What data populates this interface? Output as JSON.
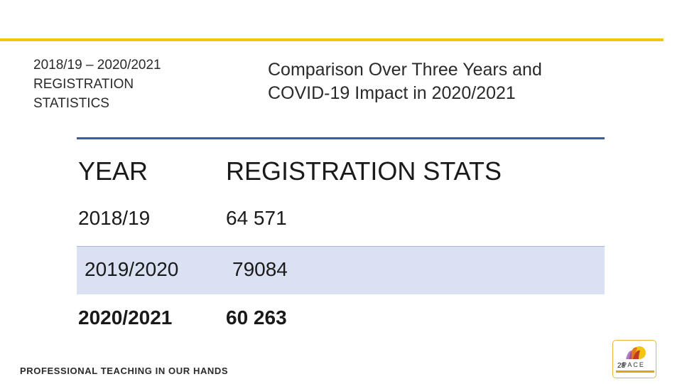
{
  "header": {
    "left_title_lines": [
      "2018/19 – 2020/2021",
      "REGISTRATION",
      "STATISTICS"
    ],
    "right_title_lines": [
      "Comparison Over Three Years and",
      "COVID-19 Impact in 2020/2021"
    ]
  },
  "table": {
    "columns": [
      "YEAR",
      "REGISTRATION STATS"
    ],
    "rows": [
      {
        "year": "2018/19",
        "stat": "64 571"
      },
      {
        "year": "2019/2020",
        "stat": "79084"
      },
      {
        "year": "2020/2021",
        "stat": "60  263"
      }
    ]
  },
  "footer": {
    "slogan": "PROFESSIONAL TEACHING IN OUR HANDS",
    "page_number": "28",
    "logo_text": "PACE"
  },
  "colors": {
    "accent_yellow": "#f2c511",
    "table_border_blue": "#3d5a9e",
    "row_band": "#d9e1f2"
  }
}
